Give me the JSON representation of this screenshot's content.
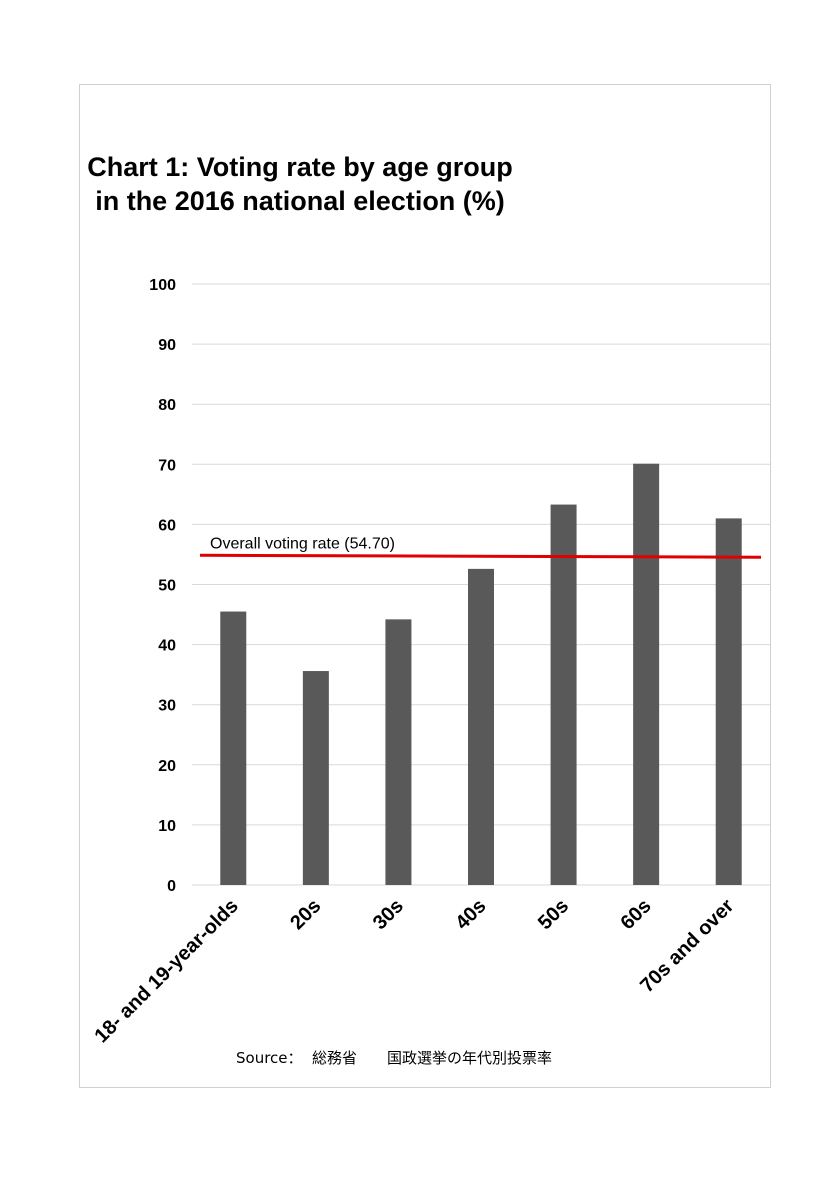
{
  "chart_data": {
    "type": "bar",
    "title_line1": "Chart 1:  Voting rate by age group",
    "title_line2": "in the 2016 national election (%)",
    "categories": [
      "18- and 19-year-olds",
      "20s",
      "30s",
      "40s",
      "50s",
      "60s",
      "70s and over"
    ],
    "values": [
      45.5,
      35.6,
      44.2,
      52.6,
      63.3,
      70.1,
      61.0
    ],
    "ylim": [
      0,
      100
    ],
    "yticks": [
      "0",
      "10",
      "20",
      "30",
      "40",
      "50",
      "60",
      "70",
      "80",
      "90",
      "100"
    ],
    "grid": true,
    "bar_color": "#595959",
    "reference_line": {
      "label": "Overall voting rate (54.70)",
      "value": 54.7,
      "color": "#e00000"
    },
    "source": "Source：  総務省　　国政選挙の年代別投票率"
  }
}
